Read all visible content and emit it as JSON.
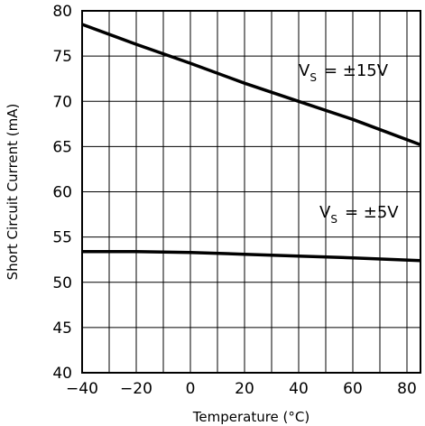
{
  "chart_data": {
    "type": "line",
    "title": "",
    "xlabel": "Temperature (°C)",
    "ylabel": "Short Circuit Current (mA)",
    "xlim": [
      -40,
      85
    ],
    "ylim": [
      40,
      80
    ],
    "x_ticks": [
      -40,
      -20,
      0,
      20,
      40,
      60,
      80
    ],
    "y_ticks": [
      40,
      45,
      50,
      55,
      60,
      65,
      70,
      75,
      80
    ],
    "x_tick_labels": [
      "−40",
      "−20",
      "0",
      "20",
      "40",
      "60",
      "80"
    ],
    "y_tick_labels": [
      "40",
      "45",
      "50",
      "55",
      "60",
      "65",
      "70",
      "75",
      "80"
    ],
    "grid": true,
    "series": [
      {
        "label_main": "V",
        "label_sub": "S",
        "label_rest": "= ±15V",
        "x": [
          -40,
          -20,
          0,
          20,
          40,
          60,
          85
        ],
        "y": [
          78.5,
          76.3,
          74.2,
          72.0,
          70.0,
          68.0,
          65.2
        ],
        "color": "#000000"
      },
      {
        "label_main": "V",
        "label_sub": "S",
        "label_rest": "= ±5V",
        "x": [
          -40,
          -20,
          0,
          20,
          40,
          60,
          85
        ],
        "y": [
          53.4,
          53.4,
          53.3,
          53.1,
          52.9,
          52.7,
          52.4
        ],
        "color": "#000000"
      }
    ]
  }
}
